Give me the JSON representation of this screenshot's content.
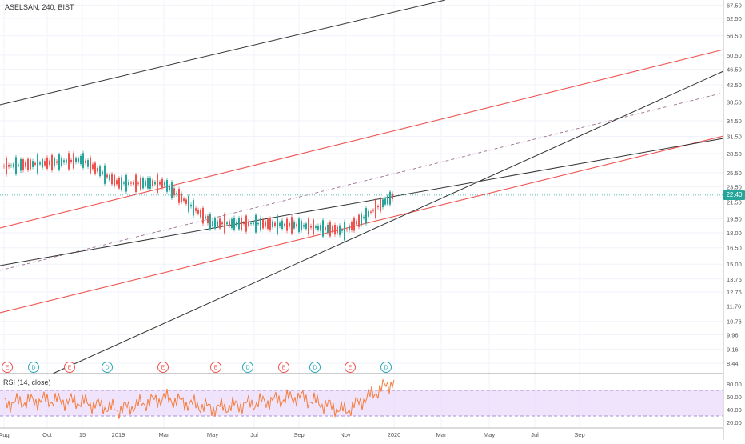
{
  "chart": {
    "symbol_title": "ASELSAN, 240, BIST",
    "price_tag": "22.40",
    "indicator_title": "RSI (14, close)"
  },
  "colors": {
    "up": "#26a69a",
    "down": "#ef5350",
    "trendline": "#333333",
    "channel": "#ef5350",
    "rsi_line": "#f57c3a",
    "rsi_band": "#e8d9fb",
    "current_price_line": "#26a69a",
    "earnings_badge": "#ef5350",
    "dividend_badge": "#2aa6b8"
  },
  "event_badges": [
    {
      "label": "E",
      "kind": "earnings"
    },
    {
      "label": "D",
      "kind": "dividend"
    },
    {
      "label": "E",
      "kind": "earnings"
    },
    {
      "label": "D",
      "kind": "dividend"
    },
    {
      "label": "E",
      "kind": "earnings"
    },
    {
      "label": "E",
      "kind": "earnings"
    },
    {
      "label": "D",
      "kind": "dividend"
    },
    {
      "label": "E",
      "kind": "earnings"
    },
    {
      "label": "D",
      "kind": "dividend"
    },
    {
      "label": "E",
      "kind": "earnings"
    },
    {
      "label": "D",
      "kind": "dividend"
    }
  ],
  "chart_data": [
    {
      "type": "line",
      "title": "ASELSAN, 240, BIST",
      "y_scale": "log",
      "y_ticks": [
        "67.50",
        "62.50",
        "56.50",
        "50.50",
        "46.50",
        "42.50",
        "38.50",
        "34.50",
        "31.50",
        "28.50",
        "25.50",
        "23.50",
        "21.50",
        "19.50",
        "18.00",
        "16.50",
        "15.00",
        "13.76",
        "12.76",
        "11.76",
        "10.76",
        "9.96",
        "9.16",
        "8.44"
      ],
      "x_ticks": [
        "Aug",
        "Oct",
        "15",
        "2019",
        "Mar",
        "May",
        "Jul",
        "Sep",
        "Nov",
        "2020",
        "Mar",
        "May",
        "Jul",
        "Sep"
      ],
      "series": [
        {
          "x": [
            "Aug",
            "Oct",
            "15",
            "2019",
            "Mar",
            "May",
            "Jul",
            "Sep",
            "Nov",
            "2020"
          ],
          "values": [
            26.5,
            27.0,
            27.5,
            24.0,
            24.0,
            19.0,
            19.0,
            18.8,
            18.2,
            22.4
          ]
        }
      ],
      "current_value": 22.4
    },
    {
      "type": "line",
      "title": "RSI (14, close)",
      "y_ticks": [
        "80.00",
        "60.00",
        "40.00",
        "20.00"
      ],
      "ylim": [
        15,
        90
      ],
      "bands": [
        30,
        70
      ],
      "series": [
        {
          "x": [
            "Aug",
            "Oct",
            "15",
            "2019",
            "Mar",
            "May",
            "Jul",
            "Sep",
            "Nov",
            "2020"
          ],
          "values": [
            50,
            55,
            52,
            40,
            58,
            42,
            50,
            60,
            38,
            85
          ]
        }
      ]
    }
  ]
}
